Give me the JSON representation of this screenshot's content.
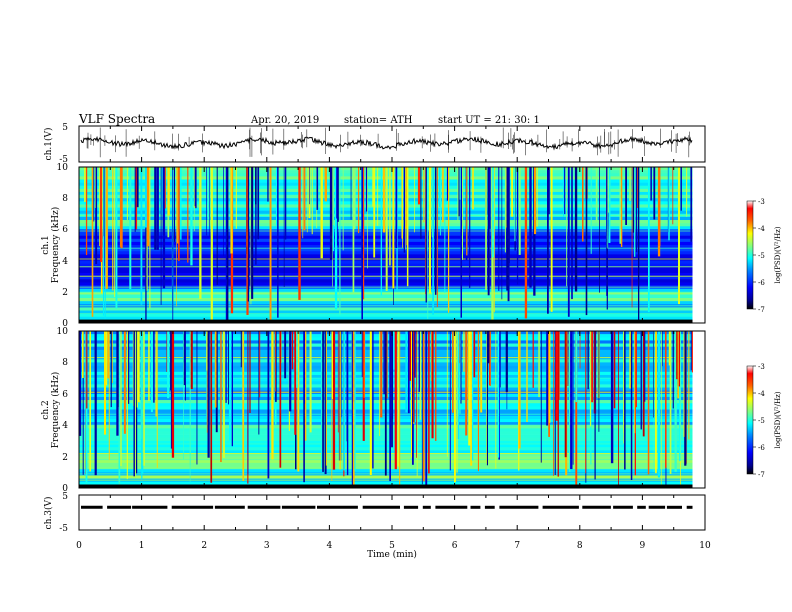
{
  "header": {
    "title": "VLF  Spectra",
    "date": "Apr. 20, 2019",
    "station": "station= ATH",
    "start": "start  UT  =    21: 30: 1"
  },
  "chart_data": [
    {
      "type": "line",
      "panel": "ch1-waveform",
      "ylabel": "ch.1(V)",
      "ylim": [
        -5,
        5
      ],
      "yticks": [
        "5",
        "-5"
      ],
      "xlim": [
        0,
        10
      ],
      "data_extent_min": 9.8,
      "baseline": 0.3
    },
    {
      "type": "heatmap",
      "panel": "ch1-spectrogram",
      "ylabel_line1": "ch.1",
      "ylabel_line2": "Frequency  (kHz)",
      "ylim": [
        0,
        10
      ],
      "yticks": [
        "0",
        "2",
        "4",
        "6",
        "8",
        "10"
      ],
      "xlim": [
        0,
        10
      ],
      "colorbar": {
        "label": "log(PSD)(V²/Hz)",
        "range": [
          -7,
          -3
        ],
        "ticks": [
          "-3",
          "-4",
          "-5",
          "-6",
          "-7"
        ]
      }
    },
    {
      "type": "heatmap",
      "panel": "ch2-spectrogram",
      "ylabel_line1": "ch.2",
      "ylabel_line2": "Frequency  (kHz)",
      "ylim": [
        0,
        10
      ],
      "yticks": [
        "0",
        "2",
        "4",
        "6",
        "8",
        "10"
      ],
      "xlim": [
        0,
        10
      ],
      "colorbar": {
        "label": "log(PSD)(V²/Hz)",
        "range": [
          -7,
          -3
        ],
        "ticks": [
          "-3",
          "-4",
          "-5",
          "-6",
          "-7"
        ]
      }
    },
    {
      "type": "line",
      "panel": "ch3-waveform",
      "ylabel": "ch.3(V)",
      "ylim": [
        -5,
        5
      ],
      "yticks": [
        "5",
        "-5"
      ],
      "xlim": [
        0,
        10
      ],
      "baseline": 1.5
    }
  ],
  "xaxis": {
    "label": "Time  (min)",
    "ticks": [
      "0",
      "1",
      "2",
      "3",
      "4",
      "5",
      "6",
      "7",
      "8",
      "9",
      "10"
    ]
  },
  "colors": {
    "jet": [
      "#000080",
      "#0000ff",
      "#0080ff",
      "#00ffff",
      "#80ff80",
      "#ffff00",
      "#ff8000",
      "#ff0000",
      "#800000"
    ]
  }
}
